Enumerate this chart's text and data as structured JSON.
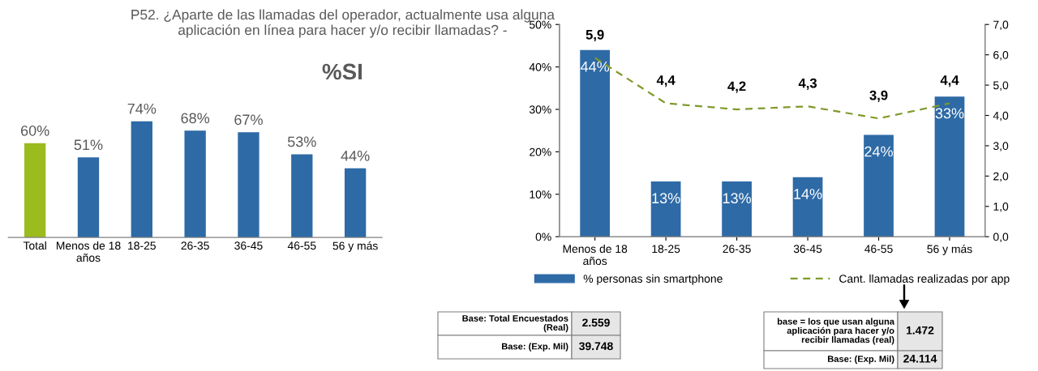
{
  "chart_data": [
    {
      "type": "bar",
      "title": "P52. ¿Aparte de las llamadas del operador, actualmente usa alguna aplicación en línea para hacer y/o recibir llamadas? -",
      "subtitle": "%SI",
      "categories": [
        "Total",
        "Menos de 18 años",
        "18-25",
        "26-35",
        "36-45",
        "46-55",
        "56 y más"
      ],
      "values": [
        60,
        51,
        74,
        68,
        67,
        53,
        44
      ],
      "colors": [
        "#9bbb1f",
        "#2e6aa6",
        "#2e6aa6",
        "#2e6aa6",
        "#2e6aa6",
        "#2e6aa6",
        "#2e6aa6"
      ],
      "value_labels": [
        "60%",
        "51%",
        "74%",
        "68%",
        "67%",
        "53%",
        "44%"
      ],
      "tick_labels": "x",
      "grid": false
    },
    {
      "type": "bar",
      "categories": [
        "Menos de 18 años",
        "18-25",
        "26-35",
        "36-45",
        "46-55",
        "56 y más"
      ],
      "series": [
        {
          "name": "% personas sin smartphone",
          "type": "bar",
          "color": "#2e6aa6",
          "values": [
            44,
            13,
            13,
            14,
            24,
            33
          ],
          "value_labels": [
            "44%",
            "13%",
            "13%",
            "14%",
            "24%",
            "33%"
          ]
        },
        {
          "name": "Cant. llamadas realizadas por app",
          "type": "line",
          "axis": "y2",
          "color": "#7f9a2a",
          "line_style": "dashed",
          "marker": "none",
          "values": [
            5.9,
            4.4,
            4.2,
            4.3,
            3.9,
            4.4
          ],
          "value_labels": [
            "5,9",
            "4,4",
            "4,2",
            "4,3",
            "3,9",
            "4,4"
          ]
        }
      ],
      "ylim": [
        0,
        50
      ],
      "yticks": [
        {
          "value": 0,
          "label": "0%"
        },
        {
          "value": 10,
          "label": "10%"
        },
        {
          "value": 20,
          "label": "20%"
        },
        {
          "value": 30,
          "label": "30%"
        },
        {
          "value": 40,
          "label": "40%"
        },
        {
          "value": 50,
          "label": "50%"
        }
      ],
      "y2lim": [
        0,
        7
      ],
      "y2ticks": [
        {
          "value": 0,
          "label": "0,0"
        },
        {
          "value": 1,
          "label": "1,0"
        },
        {
          "value": 2,
          "label": "2,0"
        },
        {
          "value": 3,
          "label": "3,0"
        },
        {
          "value": 4,
          "label": "4,0"
        },
        {
          "value": 5,
          "label": "5,0"
        },
        {
          "value": 6,
          "label": "6,0"
        },
        {
          "value": 7,
          "label": "7,0"
        }
      ],
      "grid": false,
      "legend": "bottom",
      "annotations": [
        "Base: Total Encuestados (Real)",
        "2.559",
        "Base: (Exp. Mil)",
        "39.748",
        "base = los que usan alguna aplicación para hacer y/o recibir llamadas (real)",
        "1.472",
        "Base: (Exp. Mil)",
        "24.114"
      ]
    }
  ]
}
